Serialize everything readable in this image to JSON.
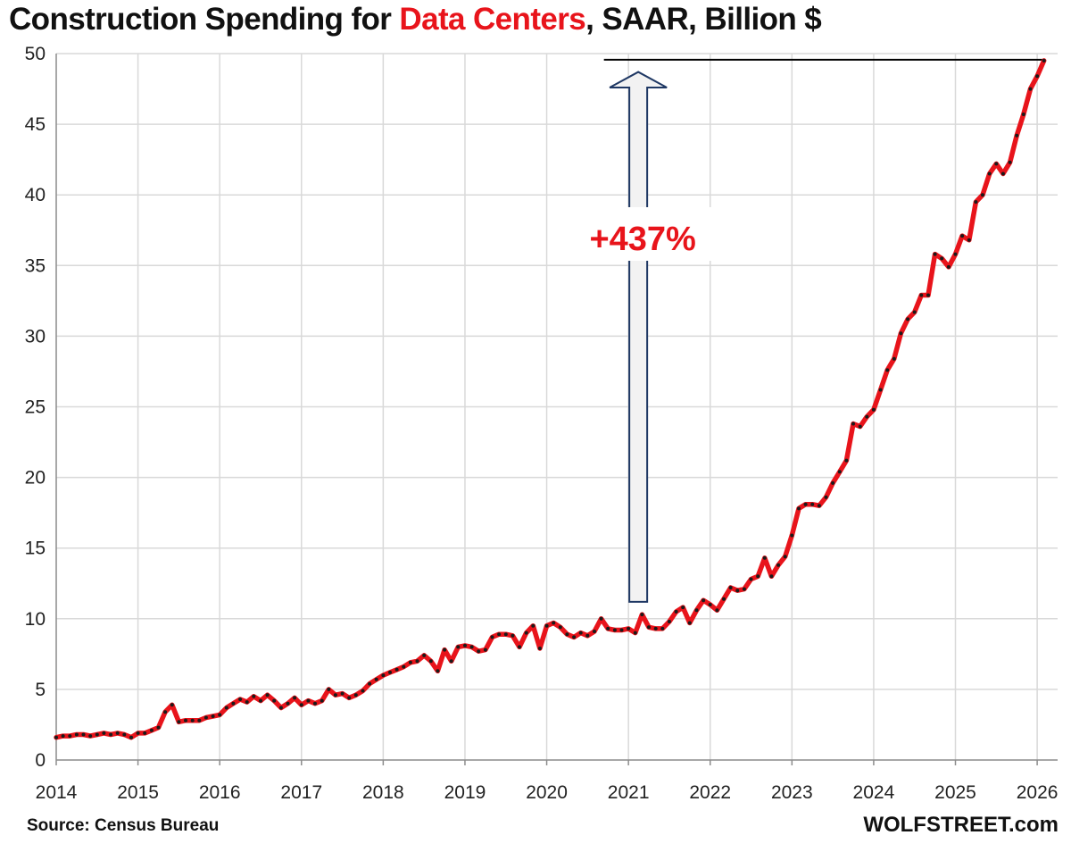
{
  "title": {
    "prefix": "Construction Spending for ",
    "highlight": "Data Centers",
    "suffix": ", SAAR, Billion $"
  },
  "source": "Source: Census Bureau",
  "brand": "WOLFSTREET.com",
  "colors": {
    "line": "#e8141b",
    "marker": "#1a1a1a",
    "grid": "#d9d9d9",
    "highlight_text": "#e8141b",
    "arrow_fill": "#f2f2f2",
    "arrow_stroke": "#1f3864"
  },
  "chart_data": {
    "type": "line",
    "title": "Construction Spending for Data Centers, SAAR, Billion $",
    "xlabel": "",
    "ylabel": "",
    "xlim": [
      2014,
      2026.25
    ],
    "ylim": [
      0,
      50
    ],
    "x_ticks": [
      "2014",
      "2015",
      "2016",
      "2017",
      "2018",
      "2019",
      "2020",
      "2021",
      "2022",
      "2023",
      "2024",
      "2025",
      "2026"
    ],
    "y_ticks": [
      "0",
      "5",
      "10",
      "15",
      "20",
      "25",
      "30",
      "35",
      "40",
      "45",
      "50"
    ],
    "grid": true,
    "series": [
      {
        "start": "2014-01",
        "frequency": "monthly",
        "values": [
          1.6,
          1.7,
          1.7,
          1.8,
          1.8,
          1.7,
          1.8,
          1.9,
          1.8,
          1.9,
          1.8,
          1.6,
          1.9,
          1.9,
          2.1,
          2.3,
          3.4,
          3.9,
          2.7,
          2.8,
          2.8,
          2.8,
          3.0,
          3.1,
          3.2,
          3.7,
          4.0,
          4.3,
          4.1,
          4.5,
          4.2,
          4.6,
          4.2,
          3.7,
          4.0,
          4.4,
          3.9,
          4.2,
          4.0,
          4.2,
          5.0,
          4.6,
          4.7,
          4.4,
          4.6,
          4.9,
          5.4,
          5.7,
          6.0,
          6.2,
          6.4,
          6.6,
          6.9,
          7.0,
          7.4,
          7.0,
          6.3,
          7.8,
          7.0,
          8.0,
          8.1,
          8.0,
          7.7,
          7.8,
          8.7,
          8.9,
          8.9,
          8.8,
          8.0,
          9.0,
          9.5,
          7.9,
          9.5,
          9.7,
          9.4,
          8.9,
          8.7,
          9.0,
          8.8,
          9.1,
          10.0,
          9.3,
          9.2,
          9.2,
          9.3,
          9.0,
          10.3,
          9.4,
          9.3,
          9.3,
          9.8,
          10.5,
          10.8,
          9.7,
          10.6,
          11.3,
          11.0,
          10.6,
          11.4,
          12.2,
          12.0,
          12.1,
          12.8,
          13.0,
          14.3,
          13.0,
          13.8,
          14.4,
          15.9,
          17.8,
          18.1,
          18.1,
          18.0,
          18.6,
          19.6,
          20.4,
          21.2,
          23.8,
          23.6,
          24.3,
          24.8,
          26.2,
          27.6,
          28.4,
          30.2,
          31.2,
          31.7,
          32.9,
          32.9,
          35.8,
          35.5,
          34.9,
          35.8,
          37.1,
          36.8,
          39.5,
          40.0,
          41.5,
          42.2,
          41.5,
          42.3,
          44.2,
          45.7,
          47.5,
          48.4,
          49.5
        ]
      }
    ],
    "annotations": [
      {
        "text": "+437%",
        "type": "arrow-up"
      },
      {
        "type": "reference-line",
        "y": 49.5
      }
    ]
  }
}
